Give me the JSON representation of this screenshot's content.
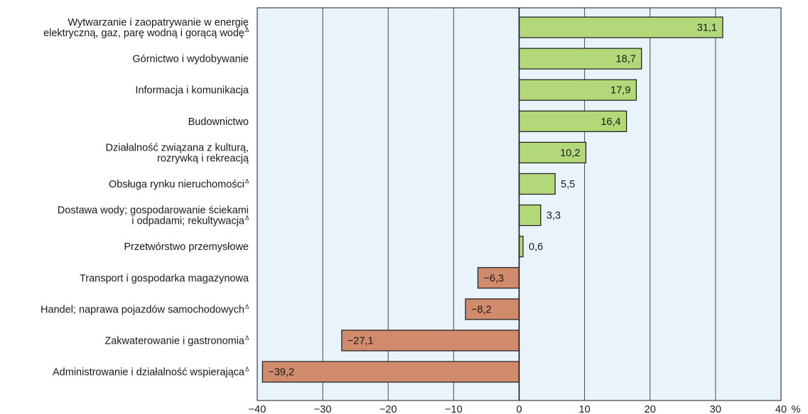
{
  "chart_data": {
    "type": "bar",
    "orientation": "horizontal",
    "title": "",
    "xlabel": "",
    "ylabel": "",
    "unit": "%",
    "xlim": [
      -40,
      40
    ],
    "xticks": [
      -40,
      -30,
      -20,
      -10,
      0,
      10,
      20,
      30,
      40
    ],
    "tick_labels": [
      "−40",
      "−30",
      "−20",
      "−10",
      "0",
      "10",
      "20",
      "30",
      "40"
    ],
    "grid": true,
    "legend": "none",
    "colors": {
      "positive": "#b3d87a",
      "negative": "#d08b6c",
      "plot_bg": "#e8f3fb",
      "bar_border": "#1a1a1a"
    },
    "categories": [
      {
        "lines": [
          "Wytwarzanie i zaopatrywanie w energię",
          "elektryczną, gaz, parę wodną i gorącą wodę"
        ],
        "mark": "Δ",
        "value": 31.1,
        "label": "31,1"
      },
      {
        "lines": [
          "Górnictwo i wydobywanie"
        ],
        "mark": "",
        "value": 18.7,
        "label": "18,7"
      },
      {
        "lines": [
          "Informacja i komunikacja"
        ],
        "mark": "",
        "value": 17.9,
        "label": "17,9"
      },
      {
        "lines": [
          "Budownictwo"
        ],
        "mark": "",
        "value": 16.4,
        "label": "16,4"
      },
      {
        "lines": [
          "Działalność związana z kulturą,",
          "rozrywką i rekreacją"
        ],
        "mark": "",
        "value": 10.2,
        "label": "10,2"
      },
      {
        "lines": [
          "Obsługa rynku nieruchomości"
        ],
        "mark": "Δ",
        "value": 5.5,
        "label": "5,5"
      },
      {
        "lines": [
          "Dostawa wody; gospodarowanie ściekami",
          "i odpadami; rekultywacja"
        ],
        "mark": "Δ",
        "value": 3.3,
        "label": "3,3"
      },
      {
        "lines": [
          "Przetwórstwo przemysłowe"
        ],
        "mark": "",
        "value": 0.6,
        "label": "0,6"
      },
      {
        "lines": [
          "Transport i gospodarka magazynowa"
        ],
        "mark": "",
        "value": -6.3,
        "label": "−6,3"
      },
      {
        "lines": [
          "Handel; naprawa pojazdów samochodowych"
        ],
        "mark": "Δ",
        "value": -8.2,
        "label": "−8,2"
      },
      {
        "lines": [
          "Zakwaterowanie i gastronomia"
        ],
        "mark": "Δ",
        "value": -27.1,
        "label": "−27,1"
      },
      {
        "lines": [
          "Administrowanie i działalność wspierająca"
        ],
        "mark": "Δ",
        "value": -39.2,
        "label": "−39,2"
      }
    ]
  }
}
